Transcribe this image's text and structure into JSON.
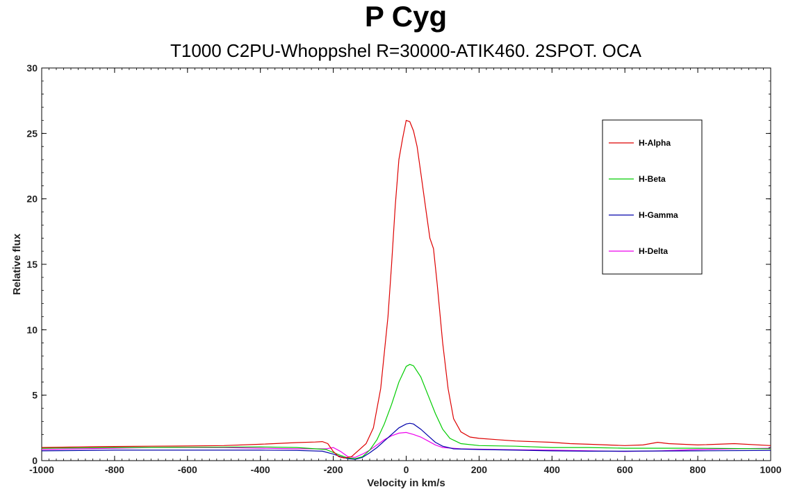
{
  "chart_data": {
    "type": "line",
    "title": "P Cyg",
    "subtitle": "T1000 C2PU-Whoppshel R=30000-ATIK460. 2SPOT. OCA",
    "xlabel": "Velocity in km/s",
    "ylabel": "Relative flux",
    "xlim": [
      -1000,
      1000
    ],
    "ylim": [
      0,
      30
    ],
    "xticks": [
      -1000,
      -800,
      -600,
      -400,
      -200,
      0,
      200,
      400,
      600,
      800,
      1000
    ],
    "yticks": [
      0,
      5,
      10,
      15,
      20,
      25,
      30
    ],
    "grid": false,
    "legend_position": "top-right",
    "series": [
      {
        "name": "H-Alpha",
        "color": "#dd0000",
        "points": [
          [
            -1000,
            1.0
          ],
          [
            -900,
            1.05
          ],
          [
            -800,
            1.08
          ],
          [
            -700,
            1.1
          ],
          [
            -600,
            1.12
          ],
          [
            -500,
            1.15
          ],
          [
            -400,
            1.25
          ],
          [
            -300,
            1.38
          ],
          [
            -250,
            1.42
          ],
          [
            -230,
            1.45
          ],
          [
            -215,
            1.3
          ],
          [
            -200,
            0.7
          ],
          [
            -185,
            0.3
          ],
          [
            -170,
            0.2
          ],
          [
            -150,
            0.3
          ],
          [
            -130,
            0.8
          ],
          [
            -110,
            1.3
          ],
          [
            -90,
            2.5
          ],
          [
            -70,
            5.5
          ],
          [
            -50,
            11.0
          ],
          [
            -40,
            15.0
          ],
          [
            -30,
            19.5
          ],
          [
            -20,
            23.0
          ],
          [
            -10,
            24.6
          ],
          [
            0,
            26.0
          ],
          [
            10,
            25.9
          ],
          [
            20,
            25.2
          ],
          [
            30,
            24.0
          ],
          [
            40,
            22.0
          ],
          [
            55,
            19.0
          ],
          [
            65,
            17.0
          ],
          [
            75,
            16.2
          ],
          [
            85,
            13.5
          ],
          [
            100,
            9.0
          ],
          [
            115,
            5.5
          ],
          [
            130,
            3.2
          ],
          [
            150,
            2.2
          ],
          [
            175,
            1.8
          ],
          [
            200,
            1.7
          ],
          [
            250,
            1.6
          ],
          [
            300,
            1.5
          ],
          [
            400,
            1.4
          ],
          [
            450,
            1.3
          ],
          [
            500,
            1.25
          ],
          [
            600,
            1.15
          ],
          [
            650,
            1.2
          ],
          [
            690,
            1.4
          ],
          [
            720,
            1.3
          ],
          [
            800,
            1.2
          ],
          [
            900,
            1.3
          ],
          [
            1000,
            1.15
          ]
        ]
      },
      {
        "name": "H-Beta",
        "color": "#00cc00",
        "points": [
          [
            -1000,
            0.95
          ],
          [
            -800,
            1.0
          ],
          [
            -600,
            1.02
          ],
          [
            -400,
            1.05
          ],
          [
            -300,
            1.0
          ],
          [
            -220,
            0.85
          ],
          [
            -180,
            0.4
          ],
          [
            -160,
            0.2
          ],
          [
            -140,
            0.15
          ],
          [
            -120,
            0.3
          ],
          [
            -100,
            0.8
          ],
          [
            -80,
            1.6
          ],
          [
            -60,
            2.8
          ],
          [
            -40,
            4.3
          ],
          [
            -20,
            6.0
          ],
          [
            0,
            7.2
          ],
          [
            10,
            7.35
          ],
          [
            20,
            7.25
          ],
          [
            40,
            6.4
          ],
          [
            60,
            5.0
          ],
          [
            80,
            3.6
          ],
          [
            100,
            2.4
          ],
          [
            120,
            1.7
          ],
          [
            150,
            1.3
          ],
          [
            200,
            1.15
          ],
          [
            300,
            1.1
          ],
          [
            400,
            1.0
          ],
          [
            500,
            1.0
          ],
          [
            600,
            0.95
          ],
          [
            800,
            0.95
          ],
          [
            1000,
            0.9
          ]
        ]
      },
      {
        "name": "H-Gamma",
        "color": "#0000aa",
        "points": [
          [
            -1000,
            0.75
          ],
          [
            -800,
            0.8
          ],
          [
            -600,
            0.8
          ],
          [
            -400,
            0.8
          ],
          [
            -300,
            0.78
          ],
          [
            -230,
            0.72
          ],
          [
            -200,
            0.5
          ],
          [
            -180,
            0.3
          ],
          [
            -160,
            0.15
          ],
          [
            -140,
            0.1
          ],
          [
            -120,
            0.25
          ],
          [
            -100,
            0.6
          ],
          [
            -80,
            1.0
          ],
          [
            -60,
            1.5
          ],
          [
            -40,
            2.0
          ],
          [
            -20,
            2.5
          ],
          [
            0,
            2.8
          ],
          [
            10,
            2.85
          ],
          [
            20,
            2.8
          ],
          [
            40,
            2.4
          ],
          [
            60,
            1.9
          ],
          [
            80,
            1.4
          ],
          [
            100,
            1.1
          ],
          [
            130,
            0.9
          ],
          [
            200,
            0.85
          ],
          [
            300,
            0.8
          ],
          [
            400,
            0.75
          ],
          [
            500,
            0.72
          ],
          [
            600,
            0.72
          ],
          [
            800,
            0.75
          ],
          [
            1000,
            0.78
          ]
        ]
      },
      {
        "name": "H-Delta",
        "color": "#ee00ee",
        "points": [
          [
            -1000,
            0.85
          ],
          [
            -900,
            0.9
          ],
          [
            -800,
            0.95
          ],
          [
            -700,
            1.0
          ],
          [
            -600,
            1.0
          ],
          [
            -500,
            1.0
          ],
          [
            -400,
            0.95
          ],
          [
            -300,
            0.9
          ],
          [
            -220,
            0.9
          ],
          [
            -200,
            1.0
          ],
          [
            -180,
            0.7
          ],
          [
            -160,
            0.3
          ],
          [
            -140,
            0.25
          ],
          [
            -120,
            0.5
          ],
          [
            -100,
            0.8
          ],
          [
            -80,
            1.2
          ],
          [
            -60,
            1.6
          ],
          [
            -40,
            1.9
          ],
          [
            -20,
            2.1
          ],
          [
            0,
            2.15
          ],
          [
            20,
            2.0
          ],
          [
            40,
            1.8
          ],
          [
            60,
            1.5
          ],
          [
            80,
            1.2
          ],
          [
            100,
            1.0
          ],
          [
            150,
            0.9
          ],
          [
            250,
            0.85
          ],
          [
            400,
            0.8
          ],
          [
            500,
            0.75
          ],
          [
            600,
            0.7
          ],
          [
            700,
            0.75
          ],
          [
            800,
            0.85
          ],
          [
            900,
            0.9
          ],
          [
            1000,
            0.95
          ]
        ]
      }
    ]
  }
}
